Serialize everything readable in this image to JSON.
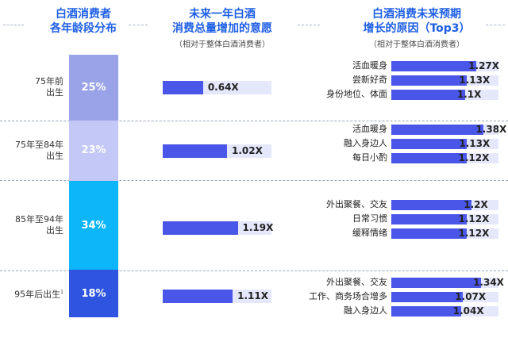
{
  "headers": {
    "col1": {
      "line1": "白酒消费者",
      "line2": "各年龄段分布"
    },
    "col2": {
      "line1": "未来一年白酒",
      "line2": "消费总量增加的意愿",
      "note": "（相对于整体白酒消费者）"
    },
    "col3": {
      "line1": "白酒消费未来预期",
      "line2": "增长的原因（Top3）",
      "note": "（相对于整体白酒消费者）"
    }
  },
  "colors": {
    "header": "#1e5fe6",
    "bar": "#4a56e8",
    "track": "#e5e8fa",
    "seg_colors": [
      "#9aa3e8",
      "#c3c8f6",
      "#0db6f8",
      "#2f55e0"
    ]
  },
  "chart_data": [
    {
      "type": "bar",
      "orientation": "stacked-100",
      "categories": [
        "75年前出生",
        "75年至84年出生",
        "85年至94年出生",
        "95年后出生¹"
      ],
      "values": [
        25,
        23,
        34,
        18
      ],
      "value_labels": [
        "25%",
        "23%",
        "34%",
        "18%"
      ],
      "age_labels": [
        [
          "75年前",
          "出生"
        ],
        [
          "75年至84年",
          "出生"
        ],
        [
          "85年至94年",
          "出生"
        ],
        [
          "95年后出生",
          "1"
        ]
      ]
    },
    {
      "type": "bar",
      "orientation": "horizontal",
      "categories": [
        "75年前出生",
        "75年至84年出生",
        "85年至94年出生",
        "95年后出生"
      ],
      "values": [
        0.64,
        1.02,
        1.19,
        1.11
      ],
      "value_labels": [
        "0.64X",
        "1.02X",
        "1.19X",
        "1.11X"
      ]
    },
    {
      "type": "bar",
      "orientation": "horizontal-grouped",
      "groups": [
        {
          "items": [
            {
              "label": "活血暖身",
              "value": 1.27,
              "value_label": "1.27X"
            },
            {
              "label": "尝新好奇",
              "value": 1.13,
              "value_label": "1.13X"
            },
            {
              "label": "身份地位、体面",
              "value": 1.1,
              "value_label": "1.1X"
            }
          ]
        },
        {
          "items": [
            {
              "label": "活血暖身",
              "value": 1.38,
              "value_label": "1.38X"
            },
            {
              "label": "融入身边人",
              "value": 1.13,
              "value_label": "1.13X"
            },
            {
              "label": "每日小酌",
              "value": 1.12,
              "value_label": "1.12X"
            }
          ]
        },
        {
          "items": [
            {
              "label": "外出聚餐、交友",
              "value": 1.2,
              "value_label": "1.2X"
            },
            {
              "label": "日常习惯",
              "value": 1.12,
              "value_label": "1.12X"
            },
            {
              "label": "缓释情绪",
              "value": 1.12,
              "value_label": "1.12X"
            }
          ]
        },
        {
          "items": [
            {
              "label": "外出聚餐、交友",
              "value": 1.34,
              "value_label": "1.34X"
            },
            {
              "label": "工作、商务场合增多",
              "value": 1.07,
              "value_label": "1.07X"
            },
            {
              "label": "融入身边人",
              "value": 1.04,
              "value_label": "1.04X"
            }
          ]
        }
      ]
    }
  ]
}
